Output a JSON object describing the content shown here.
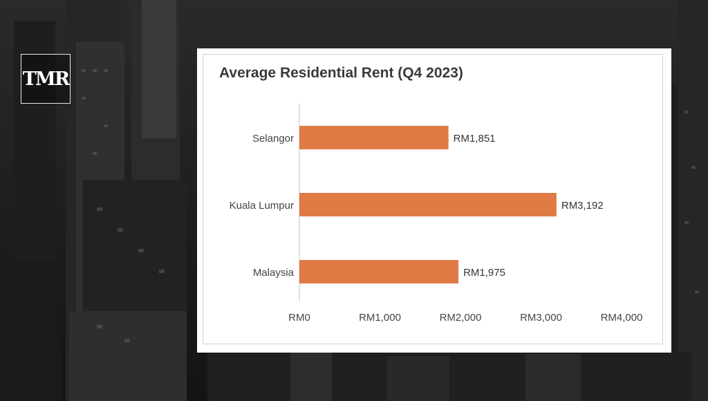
{
  "logo": {
    "text": "TMR"
  },
  "chart_data": {
    "type": "bar",
    "orientation": "horizontal",
    "title": "Average Residential Rent (Q4 2023)",
    "categories": [
      "Selangor",
      "Kuala Lumpur",
      "Malaysia"
    ],
    "values": [
      1851,
      3192,
      1975
    ],
    "value_labels": [
      "RM1,851",
      "RM3,192",
      "RM1,975"
    ],
    "x_ticks": [
      0,
      1000,
      2000,
      3000,
      4000
    ],
    "x_tick_labels": [
      "RM0",
      "RM1,000",
      "RM2,000",
      "RM3,000",
      "RM4,000"
    ],
    "xlim": [
      0,
      4000
    ],
    "xlabel": "",
    "ylabel": "",
    "grid": false,
    "legend": "none",
    "bar_color": "#e07b46"
  }
}
